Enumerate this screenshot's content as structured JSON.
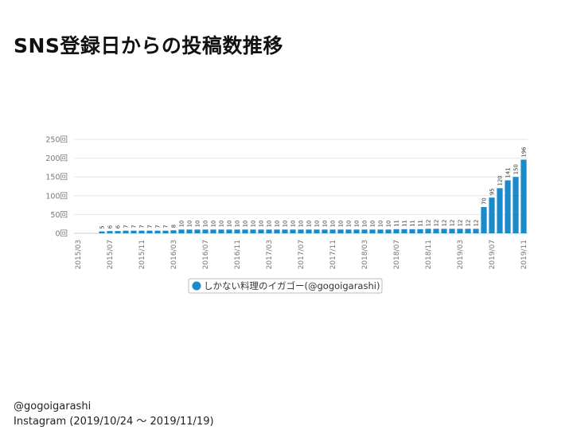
{
  "slide": {
    "title": "SNS登録日からの投稿数推移"
  },
  "footer": {
    "line1": "@gogoigarashi",
    "line2": "Instagram (2019/10/24 〜 2019/11/19)"
  },
  "colors": {
    "bar": "#1b8ac9",
    "grid": "#e6e6e6",
    "axis_text": "#777777",
    "legend_border": "#bbbbbb"
  },
  "chart_data": {
    "type": "bar",
    "title": "",
    "xlabel": "",
    "ylabel": "",
    "ylim": [
      0,
      250
    ],
    "yticks": [
      {
        "value": 0,
        "label": "0回"
      },
      {
        "value": 50,
        "label": "50回"
      },
      {
        "value": 100,
        "label": "100回"
      },
      {
        "value": 150,
        "label": "150回"
      },
      {
        "value": 200,
        "label": "200回"
      },
      {
        "value": 250,
        "label": "250回"
      }
    ],
    "grid": true,
    "legend_position": "bottom",
    "categories": [
      "2015/03",
      "2015/04",
      "2015/05",
      "2015/06",
      "2015/07",
      "2015/08",
      "2015/09",
      "2015/10",
      "2015/11",
      "2015/12",
      "2016/01",
      "2016/02",
      "2016/03",
      "2016/04",
      "2016/05",
      "2016/06",
      "2016/07",
      "2016/08",
      "2016/09",
      "2016/10",
      "2016/11",
      "2016/12",
      "2017/01",
      "2017/02",
      "2017/03",
      "2017/04",
      "2017/05",
      "2017/06",
      "2017/07",
      "2017/08",
      "2017/09",
      "2017/10",
      "2017/11",
      "2017/12",
      "2018/01",
      "2018/02",
      "2018/03",
      "2018/04",
      "2018/05",
      "2018/06",
      "2018/07",
      "2018/08",
      "2018/09",
      "2018/10",
      "2018/11",
      "2018/12",
      "2019/01",
      "2019/02",
      "2019/03",
      "2019/04",
      "2019/05",
      "2019/06",
      "2019/07",
      "2019/08",
      "2019/09",
      "2019/10",
      "2019/11"
    ],
    "tick_labels": [
      "2015/03",
      "2015/07",
      "2015/11",
      "2016/03",
      "2016/07",
      "2016/11",
      "2017/03",
      "2017/07",
      "2017/11",
      "2018/03",
      "2018/07",
      "2018/11",
      "2019/03",
      "2019/07",
      "2019/11"
    ],
    "series": [
      {
        "name": "しかない料理のイガゴー(@gogoigarashi)",
        "values": [
          0,
          0,
          0,
          5,
          6,
          6,
          7,
          7,
          7,
          7,
          7,
          7,
          8,
          10,
          10,
          10,
          10,
          10,
          10,
          10,
          10,
          10,
          10,
          10,
          10,
          10,
          10,
          10,
          10,
          10,
          10,
          10,
          10,
          10,
          10,
          10,
          10,
          10,
          10,
          10,
          11,
          11,
          11,
          11,
          12,
          12,
          12,
          12,
          12,
          12,
          12,
          70,
          95,
          120,
          141,
          150,
          196
        ],
        "data_labels": [
          "",
          "",
          "",
          "5",
          "6",
          "6",
          "7",
          "7",
          "7",
          "7",
          "7",
          "7",
          "8",
          "10",
          "10",
          "10",
          "10",
          "10",
          "10",
          "10",
          "10",
          "10",
          "10",
          "10",
          "10",
          "10",
          "10",
          "10",
          "10",
          "10",
          "10",
          "10",
          "10",
          "10",
          "10",
          "10",
          "10",
          "10",
          "10",
          "10",
          "11",
          "11",
          "11",
          "11",
          "12",
          "12",
          "12",
          "12",
          "12",
          "12",
          "12",
          "70",
          "95",
          "120",
          "141",
          "150",
          "196"
        ]
      }
    ]
  }
}
